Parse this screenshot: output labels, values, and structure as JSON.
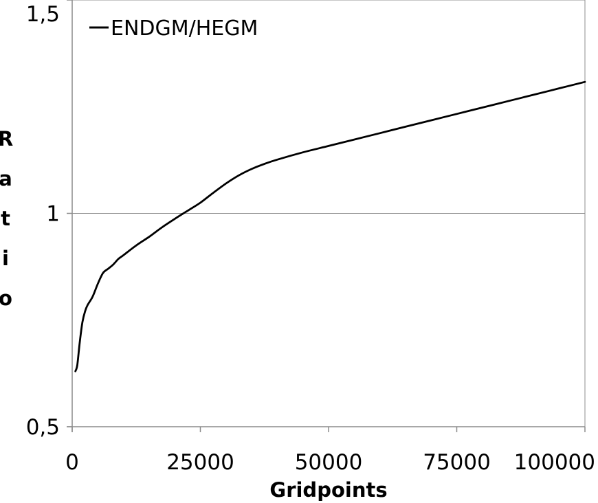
{
  "chart_data": {
    "type": "line",
    "xlabel": "Gridpoints",
    "ylabel": "Ratio",
    "xlim": [
      0,
      100000
    ],
    "ylim": [
      0.5,
      1.5
    ],
    "x_ticks": [
      0,
      25000,
      50000,
      75000,
      100000
    ],
    "x_tick_labels": [
      "0",
      "25000",
      "50000",
      "75000",
      "100000"
    ],
    "y_ticks": [
      0.5,
      1,
      1.5
    ],
    "y_tick_labels": [
      "0,5",
      "1",
      "1,5"
    ],
    "grid": "horizontal",
    "legend_position": "top-left",
    "series": [
      {
        "name": "ENDGM/HEGM",
        "color": "#000000",
        "x": [
          625,
          1000,
          1500,
          2000,
          2500,
          3000,
          4000,
          5000,
          6000,
          7000,
          8000,
          9000,
          10000,
          12500,
          15000,
          17500,
          20000,
          22500,
          25000,
          27500,
          30000,
          32500,
          35000,
          37500,
          40000,
          45000,
          50000,
          55000,
          60000,
          65000,
          70000,
          75000,
          80000,
          85000,
          90000,
          95000,
          100000
        ],
        "y": [
          0.63,
          0.645,
          0.7,
          0.745,
          0.77,
          0.785,
          0.805,
          0.835,
          0.86,
          0.87,
          0.88,
          0.893,
          0.902,
          0.925,
          0.945,
          0.967,
          0.987,
          1.006,
          1.025,
          1.048,
          1.07,
          1.089,
          1.104,
          1.116,
          1.126,
          1.143,
          1.158,
          1.173,
          1.188,
          1.203,
          1.218,
          1.233,
          1.248,
          1.263,
          1.278,
          1.293,
          1.308
        ]
      }
    ]
  }
}
